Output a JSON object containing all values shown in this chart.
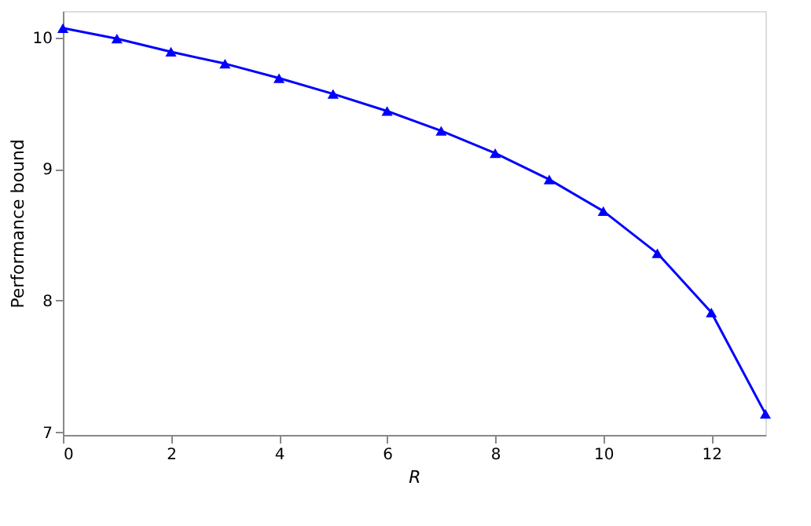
{
  "chart_data": {
    "type": "line",
    "xlabel": "R",
    "ylabel": "Performance bound",
    "x": [
      0,
      1,
      2,
      3,
      4,
      5,
      6,
      7,
      8,
      9,
      10,
      11,
      12,
      13
    ],
    "series": [
      {
        "color": "#0000ff",
        "values": [
          10.07,
          9.99,
          9.89,
          9.8,
          9.69,
          9.57,
          9.44,
          9.29,
          9.12,
          8.92,
          8.68,
          8.36,
          7.91,
          7.14
        ]
      }
    ],
    "xlim": [
      0,
      13
    ],
    "xticks": [
      0,
      2,
      4,
      6,
      8,
      10,
      12
    ],
    "ylim": [
      6.98,
      10.2
    ],
    "yticks": [
      7,
      8,
      9,
      10
    ],
    "grid": false,
    "marker": "triangle",
    "line_style": "solid"
  }
}
